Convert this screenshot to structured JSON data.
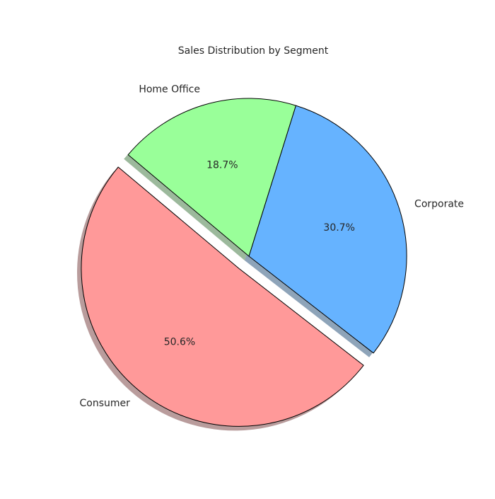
{
  "chart_data": {
    "type": "pie",
    "title": "Sales Distribution by Segment",
    "slices": [
      {
        "label": "Consumer",
        "value": 50.6,
        "display": "50.6%",
        "color": "#ff9999",
        "exploded": true
      },
      {
        "label": "Corporate",
        "value": 30.7,
        "display": "30.7%",
        "color": "#66b3ff",
        "exploded": false
      },
      {
        "label": "Home Office",
        "value": 18.7,
        "display": "18.7%",
        "color": "#99ff99",
        "exploded": false
      }
    ],
    "start_angle_deg": 140,
    "direction": "counterclockwise",
    "shadow": true,
    "edge_color": "#000000",
    "legend": "none"
  }
}
